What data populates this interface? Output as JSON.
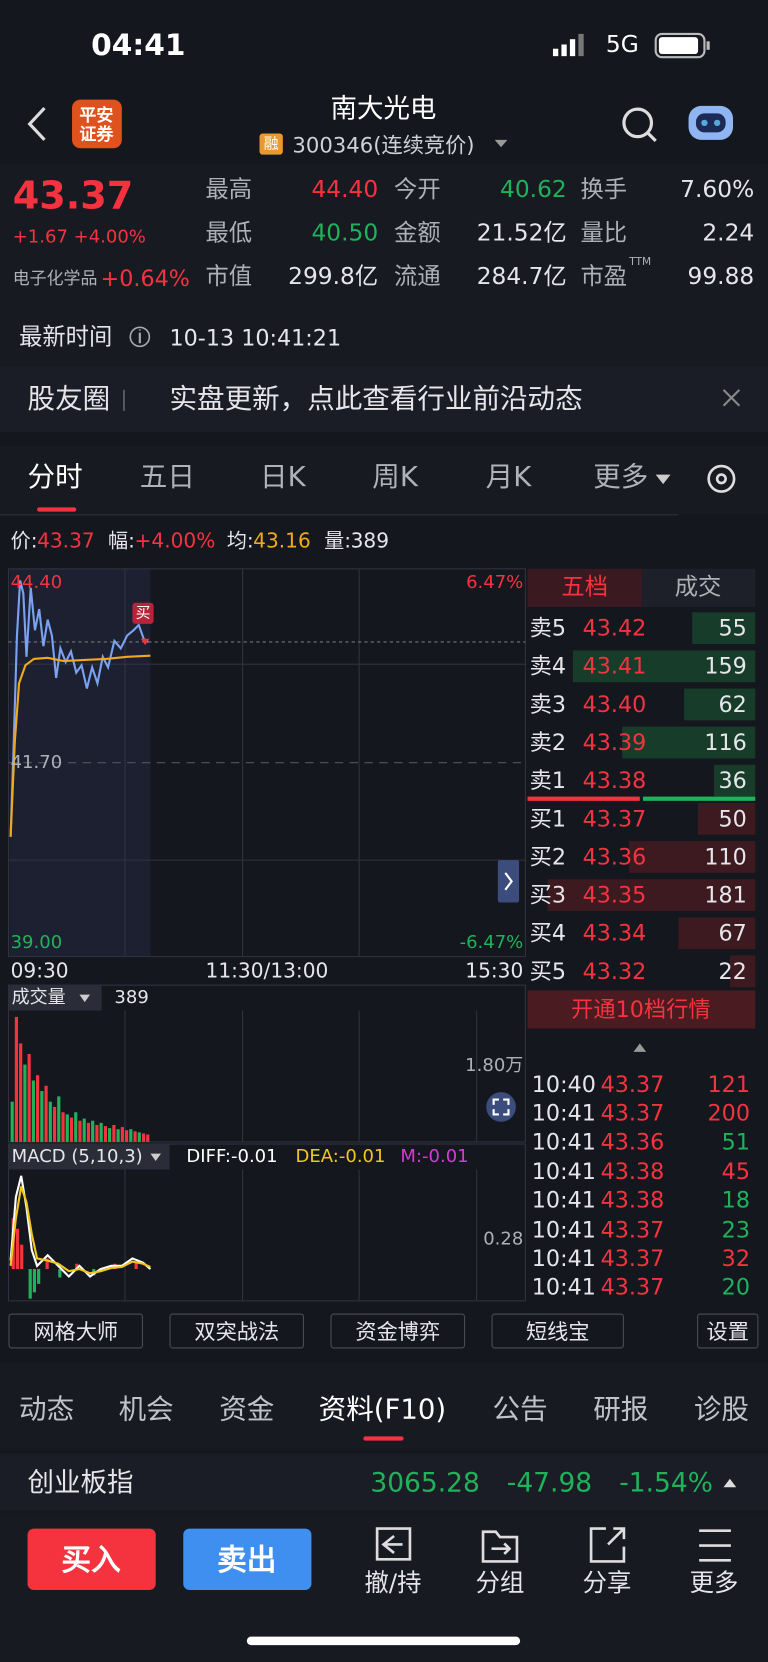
{
  "status": {
    "time": "04:41",
    "network": "5G"
  },
  "header": {
    "title": "南大光电",
    "badge": "融",
    "code": "300346(连续竞价)",
    "logo": "平安\n证券"
  },
  "quote": {
    "price": "43.37",
    "change": "+1.67 +4.00%",
    "sector": "电子化学品",
    "sector_change": "+0.64%",
    "stats": [
      {
        "label": "最高",
        "value": "44.40",
        "color": "#f5333f"
      },
      {
        "label": "今开",
        "value": "40.62",
        "color": "#1fb25a"
      },
      {
        "label": "换手",
        "value": "7.60%",
        "color": "#e6e6ea"
      },
      {
        "label": "最低",
        "value": "40.50",
        "color": "#1fb25a"
      },
      {
        "label": "金额",
        "value": "21.52亿",
        "color": "#e6e6ea"
      },
      {
        "label": "量比",
        "value": "2.24",
        "color": "#e6e6ea"
      },
      {
        "label": "市值",
        "value": "299.8亿",
        "color": "#e6e6ea"
      },
      {
        "label": "流通",
        "value": "284.7亿",
        "color": "#e6e6ea"
      },
      {
        "label": "市盈",
        "value": "99.88",
        "color": "#e6e6ea",
        "sup": "TTM"
      }
    ]
  },
  "update": {
    "label": "最新时间",
    "time": "10-13 10:41:21"
  },
  "banner": {
    "tag": "股友圈",
    "text": "实盘更新，点此查看行业前沿动态"
  },
  "tabs": [
    "分时",
    "五日",
    "日K",
    "周K",
    "月K",
    "更多"
  ],
  "chart_info": [
    {
      "label": "价:",
      "value": "43.37"
    },
    {
      "label": "幅:",
      "value": "+4.00%"
    },
    {
      "label": "均:",
      "value": "43.16"
    },
    {
      "label": "量:",
      "value": "389"
    }
  ],
  "chart_labels": {
    "high": "44.40",
    "high_pct": "6.47%",
    "mid": "41.70",
    "low": "39.00",
    "low_pct": "-6.47%",
    "times": [
      "09:30",
      "11:30/13:00",
      "15:30"
    ],
    "marker": "买"
  },
  "order_book": {
    "tabs": [
      "五档",
      "成交"
    ],
    "rows": [
      {
        "side": "卖5",
        "price": "43.42",
        "volume": 55
      },
      {
        "side": "卖4",
        "price": "43.41",
        "volume": 159
      },
      {
        "side": "卖3",
        "price": "43.40",
        "volume": 62
      },
      {
        "side": "卖2",
        "price": "43.39",
        "volume": 116
      },
      {
        "side": "卖1",
        "price": "43.38",
        "volume": 36
      },
      {
        "side": "买1",
        "price": "43.37",
        "volume": 50
      },
      {
        "side": "买2",
        "price": "43.36",
        "volume": 110
      },
      {
        "side": "买3",
        "price": "43.35",
        "volume": 181
      },
      {
        "side": "买4",
        "price": "43.34",
        "volume": 67
      },
      {
        "side": "买5",
        "price": "43.32",
        "volume": 22
      }
    ],
    "upgrade": "开通10档行情"
  },
  "volume": {
    "label": "成交量",
    "value": "389",
    "max": "1.80万"
  },
  "macd": {
    "label": "MACD (5,10,3)",
    "diff": "DIFF:-0.01",
    "dea": "DEA:-0.01",
    "m": "M:-0.01",
    "scale": "0.28"
  },
  "trades": [
    {
      "time": "10:40",
      "price": "43.37",
      "volume": 121,
      "color": "#f5333f"
    },
    {
      "time": "10:41",
      "price": "43.37",
      "volume": 200,
      "color": "#f5333f"
    },
    {
      "time": "10:41",
      "price": "43.36",
      "volume": 51,
      "color": "#1fb25a"
    },
    {
      "time": "10:41",
      "price": "43.38",
      "volume": 45,
      "color": "#f5333f"
    },
    {
      "time": "10:41",
      "price": "43.38",
      "volume": 18,
      "color": "#1fb25a"
    },
    {
      "time": "10:41",
      "price": "43.37",
      "volume": 23,
      "color": "#1fb25a"
    },
    {
      "time": "10:41",
      "price": "43.37",
      "volume": 32,
      "color": "#f5333f"
    },
    {
      "time": "10:41",
      "price": "43.37",
      "volume": 20,
      "color": "#1fb25a"
    }
  ],
  "tools": [
    "网格大师",
    "双突战法",
    "资金博弈",
    "短线宝",
    "设置"
  ],
  "info_tabs": [
    "动态",
    "机会",
    "资金",
    "资料(F10)",
    "公告",
    "研报",
    "诊股"
  ],
  "index": {
    "name": "创业板指",
    "value": "3065.28",
    "change": "-47.98",
    "pct": "-1.54%"
  },
  "actions": {
    "buy": "买入",
    "sell": "卖出",
    "items": [
      "撤/持",
      "分组",
      "分享",
      "更多"
    ]
  }
}
